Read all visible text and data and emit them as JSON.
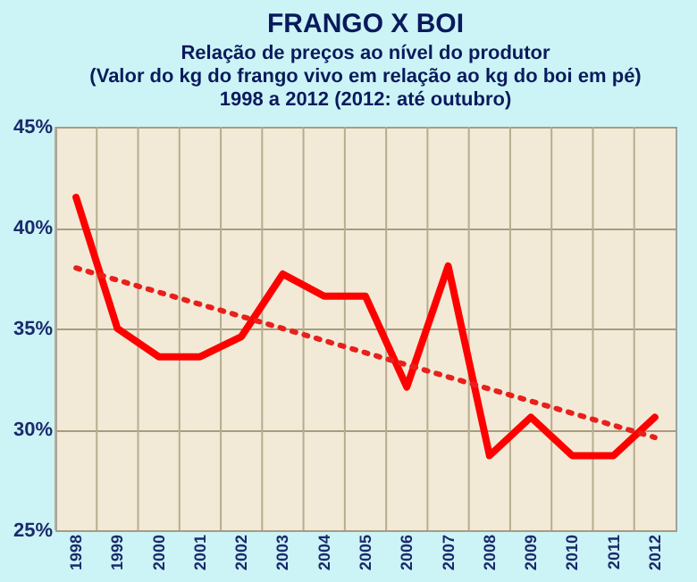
{
  "chart_data": {
    "type": "line",
    "title": "FRANGO X BOI",
    "subtitle": "Relação de preços ao nível do produtor\n(Valor do kg do frango vivo em relação ao kg do boi em pé)\n1998 a 2012 (2012: até outubro)",
    "categories": [
      "1998",
      "1999",
      "2000",
      "2001",
      "2002",
      "2003",
      "2004",
      "2005",
      "2006",
      "2007",
      "2008",
      "2009",
      "2010",
      "2011",
      "2012"
    ],
    "series": [
      {
        "color": "#ff0000",
        "line_style": "solid",
        "values": [
          41.5,
          35,
          33.6,
          33.6,
          34.6,
          37.7,
          36.6,
          36.6,
          32.1,
          38.1,
          28.7,
          30.6,
          28.7,
          28.7,
          30.6
        ]
      },
      {
        "color": "#e8201c",
        "line_style": "dotted",
        "values": [
          38,
          37.4,
          36.8,
          36.2,
          35.6,
          35,
          34.4,
          33.8,
          33.2,
          32.6,
          32,
          31.4,
          30.8,
          30.2,
          29.6
        ]
      }
    ],
    "ylim": [
      25,
      45
    ],
    "yticks": [
      {
        "value": 25,
        "label": "25%"
      },
      {
        "value": 30,
        "label": "30%"
      },
      {
        "value": 35,
        "label": "35%"
      },
      {
        "value": 40,
        "label": "40%"
      },
      {
        "value": 45,
        "label": "45%"
      }
    ],
    "grid": true,
    "legend": false,
    "marker": "none"
  }
}
